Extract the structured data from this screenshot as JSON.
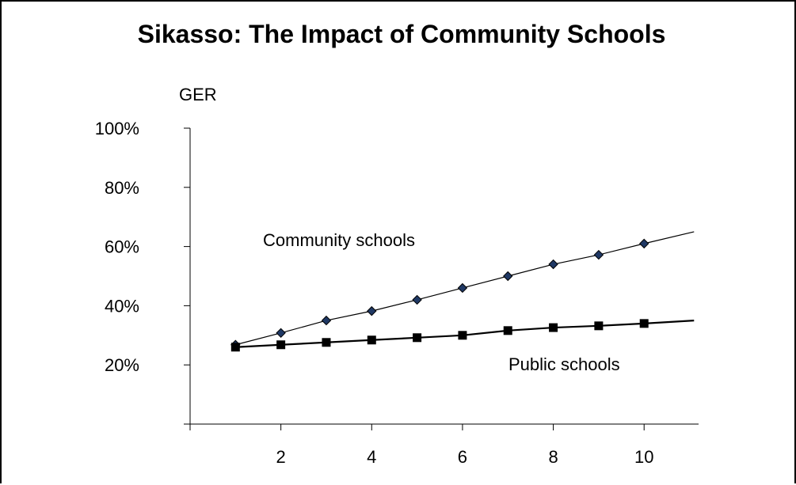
{
  "chart_data": {
    "type": "line",
    "title": "Sikasso:  The Impact of Community Schools",
    "ylabel": "GER",
    "xlabel": "",
    "xlim": [
      0,
      11.2
    ],
    "ylim": [
      0,
      100
    ],
    "x_ticks": [
      2,
      4,
      6,
      8,
      10
    ],
    "y_ticks": [
      "20%",
      "40%",
      "60%",
      "80%",
      "100%"
    ],
    "y_tick_values": [
      20,
      40,
      60,
      80,
      100
    ],
    "grid": false,
    "series": [
      {
        "name": "Community schools",
        "marker": "diamond",
        "color": "#000000",
        "marker_color": "#1f3864",
        "x": [
          1,
          2,
          3,
          4,
          5,
          6,
          7,
          8,
          9,
          10
        ],
        "values": [
          26.8,
          30.8,
          35.0,
          38.2,
          42.0,
          46.0,
          50.0,
          54.0,
          57.2,
          61.0
        ],
        "trend_end": {
          "x": 11.1,
          "y": 65
        }
      },
      {
        "name": "Public schools",
        "marker": "square",
        "color": "#000000",
        "marker_color": "#000000",
        "x": [
          1,
          2,
          3,
          4,
          5,
          6,
          7,
          8,
          9,
          10
        ],
        "values": [
          26.0,
          26.8,
          27.6,
          28.4,
          29.2,
          30.0,
          31.6,
          32.6,
          33.2,
          34.0
        ],
        "trend_end": {
          "x": 11.1,
          "y": 35
        }
      }
    ]
  }
}
